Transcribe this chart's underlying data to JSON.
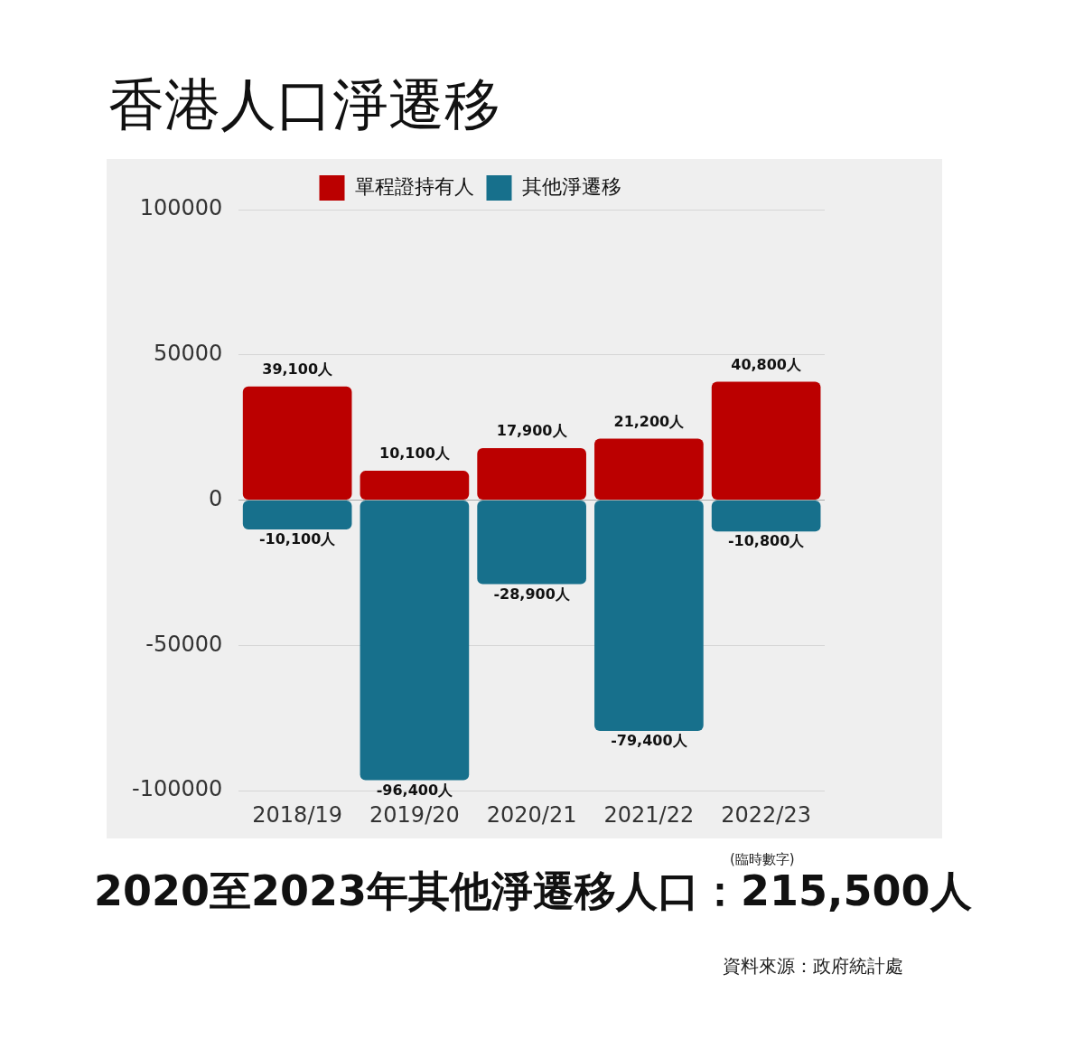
{
  "chart_data": {
    "type": "bar",
    "title": "香港人口淨遷移",
    "subtitle": "2020至2023年其他淨遷移人口：215,500人",
    "categories": [
      "2018/19",
      "2019/20",
      "2020/21",
      "2021/22",
      "2022/23"
    ],
    "stacked": true,
    "series": [
      {
        "name": "單程證持有人",
        "color": "#bb0000",
        "values": [
          39100,
          10100,
          17900,
          21200,
          40800
        ],
        "value_labels": [
          "39,100人",
          "10,100人",
          "17,900人",
          "21,200人",
          "40,800人"
        ]
      },
      {
        "name": "其他淨遷移",
        "color": "#17708c",
        "values": [
          -10100,
          -96400,
          -28900,
          -79400,
          -10800
        ],
        "value_labels": [
          "-10,100人",
          "-96,400人",
          "-28,900人",
          "-79,400人",
          "-10,800人"
        ]
      }
    ],
    "ylim": [
      -100000,
      100000
    ],
    "yticks": [
      -100000,
      -50000,
      0,
      50000,
      100000
    ],
    "grid": "y",
    "legend": "top",
    "annotations": [
      "(臨時數字)",
      "資料來源：政府統計處"
    ]
  }
}
